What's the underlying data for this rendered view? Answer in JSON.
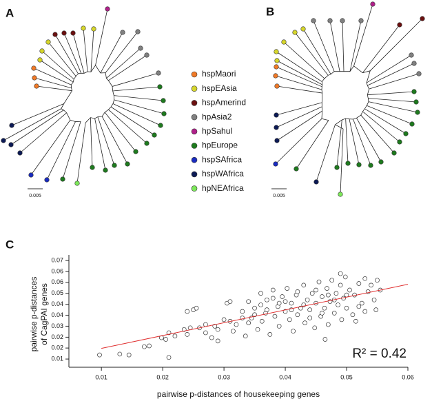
{
  "panels": {
    "a": "A",
    "b": "B",
    "c": "C"
  },
  "legend": [
    {
      "name": "hspMaori",
      "color": "#f07a28"
    },
    {
      "name": "hspEAsia",
      "color": "#d6d62c"
    },
    {
      "name": "hspAmerind",
      "color": "#6b1010"
    },
    {
      "name": "hpAsia2",
      "color": "#808080"
    },
    {
      "name": "hpSahul",
      "color": "#b0208a"
    },
    {
      "name": "hpEurope",
      "color": "#1e7a1e"
    },
    {
      "name": "hspSAfrica",
      "color": "#1a2cc0"
    },
    {
      "name": "hspWAfrica",
      "color": "#0c1a55"
    },
    {
      "name": "hpNEAfrica",
      "color": "#7de85a"
    }
  ],
  "scale_bars": [
    {
      "label": "0.005"
    },
    {
      "label": "0.005"
    }
  ],
  "chart_data": {
    "type": "scatter",
    "x_label": "pairwise p-distances of housekeeping genes",
    "y_label": [
      "pairwise p-distances",
      "of CagPAI genes"
    ],
    "annotation": "R² = 0.42",
    "xlim": [
      0.0047,
      0.06
    ],
    "ylim": [
      0.005,
      0.0734
    ],
    "xticks": [
      0.01,
      0.02,
      0.03,
      0.04,
      0.05,
      0.06
    ],
    "yticks": [
      {
        "value": 0.01,
        "label": "0.01"
      },
      {
        "value": 0.0167,
        "label": "0.02"
      },
      {
        "value": 0.0233,
        "label": "0.02"
      },
      {
        "value": 0.03,
        "label": "0.03"
      },
      {
        "value": 0.0367,
        "label": "0.04"
      },
      {
        "value": 0.0433,
        "label": "0.04"
      },
      {
        "value": 0.05,
        "label": "0.05"
      },
      {
        "value": 0.0567,
        "label": "0.06"
      },
      {
        "value": 0.0633,
        "label": "0.06"
      },
      {
        "value": 0.07,
        "label": "0.07"
      }
    ],
    "fit_line": {
      "color": "#e03030",
      "x": [
        0.01,
        0.06
      ],
      "y": [
        0.0165,
        0.0555
      ]
    },
    "point_color": "#333333",
    "x": [
      0.0097,
      0.013,
      0.0145,
      0.017,
      0.0178,
      0.0198,
      0.021,
      0.0205,
      0.021,
      0.022,
      0.0235,
      0.024,
      0.025,
      0.0255,
      0.026,
      0.024,
      0.0245,
      0.027,
      0.028,
      0.0285,
      0.029,
      0.03,
      0.0305,
      0.031,
      0.0315,
      0.032,
      0.033,
      0.0335,
      0.034,
      0.0345,
      0.035,
      0.0355,
      0.036,
      0.0362,
      0.0368,
      0.037,
      0.0375,
      0.038,
      0.0383,
      0.0388,
      0.039,
      0.0395,
      0.04,
      0.0403,
      0.0407,
      0.041,
      0.0413,
      0.0418,
      0.042,
      0.0425,
      0.043,
      0.0432,
      0.0436,
      0.044,
      0.0444,
      0.0448,
      0.045,
      0.0455,
      0.0458,
      0.046,
      0.0464,
      0.0468,
      0.047,
      0.0473,
      0.0476,
      0.048,
      0.0483,
      0.0486,
      0.049,
      0.0492,
      0.0495,
      0.0498,
      0.05,
      0.0505,
      0.051,
      0.0513,
      0.052,
      0.0525,
      0.053,
      0.0535,
      0.054,
      0.0545,
      0.055,
      0.0555,
      0.0548,
      0.034,
      0.036,
      0.038,
      0.04,
      0.042,
      0.044,
      0.046,
      0.048,
      0.05,
      0.052,
      0.041,
      0.043,
      0.045,
      0.047,
      0.039,
      0.037,
      0.035,
      0.033,
      0.031,
      0.029,
      0.027,
      0.0465,
      0.0515,
      0.053,
      0.049
    ],
    "y": [
      0.0125,
      0.013,
      0.0125,
      0.0175,
      0.018,
      0.023,
      0.011,
      0.022,
      0.026,
      0.024,
      0.028,
      0.039,
      0.04,
      0.041,
      0.029,
      0.025,
      0.029,
      0.026,
      0.023,
      0.03,
      0.021,
      0.034,
      0.044,
      0.045,
      0.027,
      0.031,
      0.039,
      0.024,
      0.045,
      0.035,
      0.041,
      0.028,
      0.05,
      0.033,
      0.038,
      0.046,
      0.025,
      0.052,
      0.036,
      0.042,
      0.03,
      0.048,
      0.039,
      0.053,
      0.034,
      0.044,
      0.027,
      0.049,
      0.037,
      0.041,
      0.055,
      0.032,
      0.046,
      0.04,
      0.05,
      0.029,
      0.044,
      0.057,
      0.036,
      0.048,
      0.041,
      0.053,
      0.031,
      0.045,
      0.058,
      0.038,
      0.05,
      0.043,
      0.055,
      0.034,
      0.047,
      0.06,
      0.041,
      0.052,
      0.037,
      0.049,
      0.056,
      0.044,
      0.039,
      0.051,
      0.055,
      0.046,
      0.058,
      0.052,
      0.04,
      0.032,
      0.043,
      0.047,
      0.045,
      0.051,
      0.035,
      0.038,
      0.046,
      0.049,
      0.042,
      0.04,
      0.043,
      0.052,
      0.049,
      0.044,
      0.04,
      0.037,
      0.035,
      0.033,
      0.028,
      0.031,
      0.022,
      0.033,
      0.059,
      0.062
    ]
  }
}
